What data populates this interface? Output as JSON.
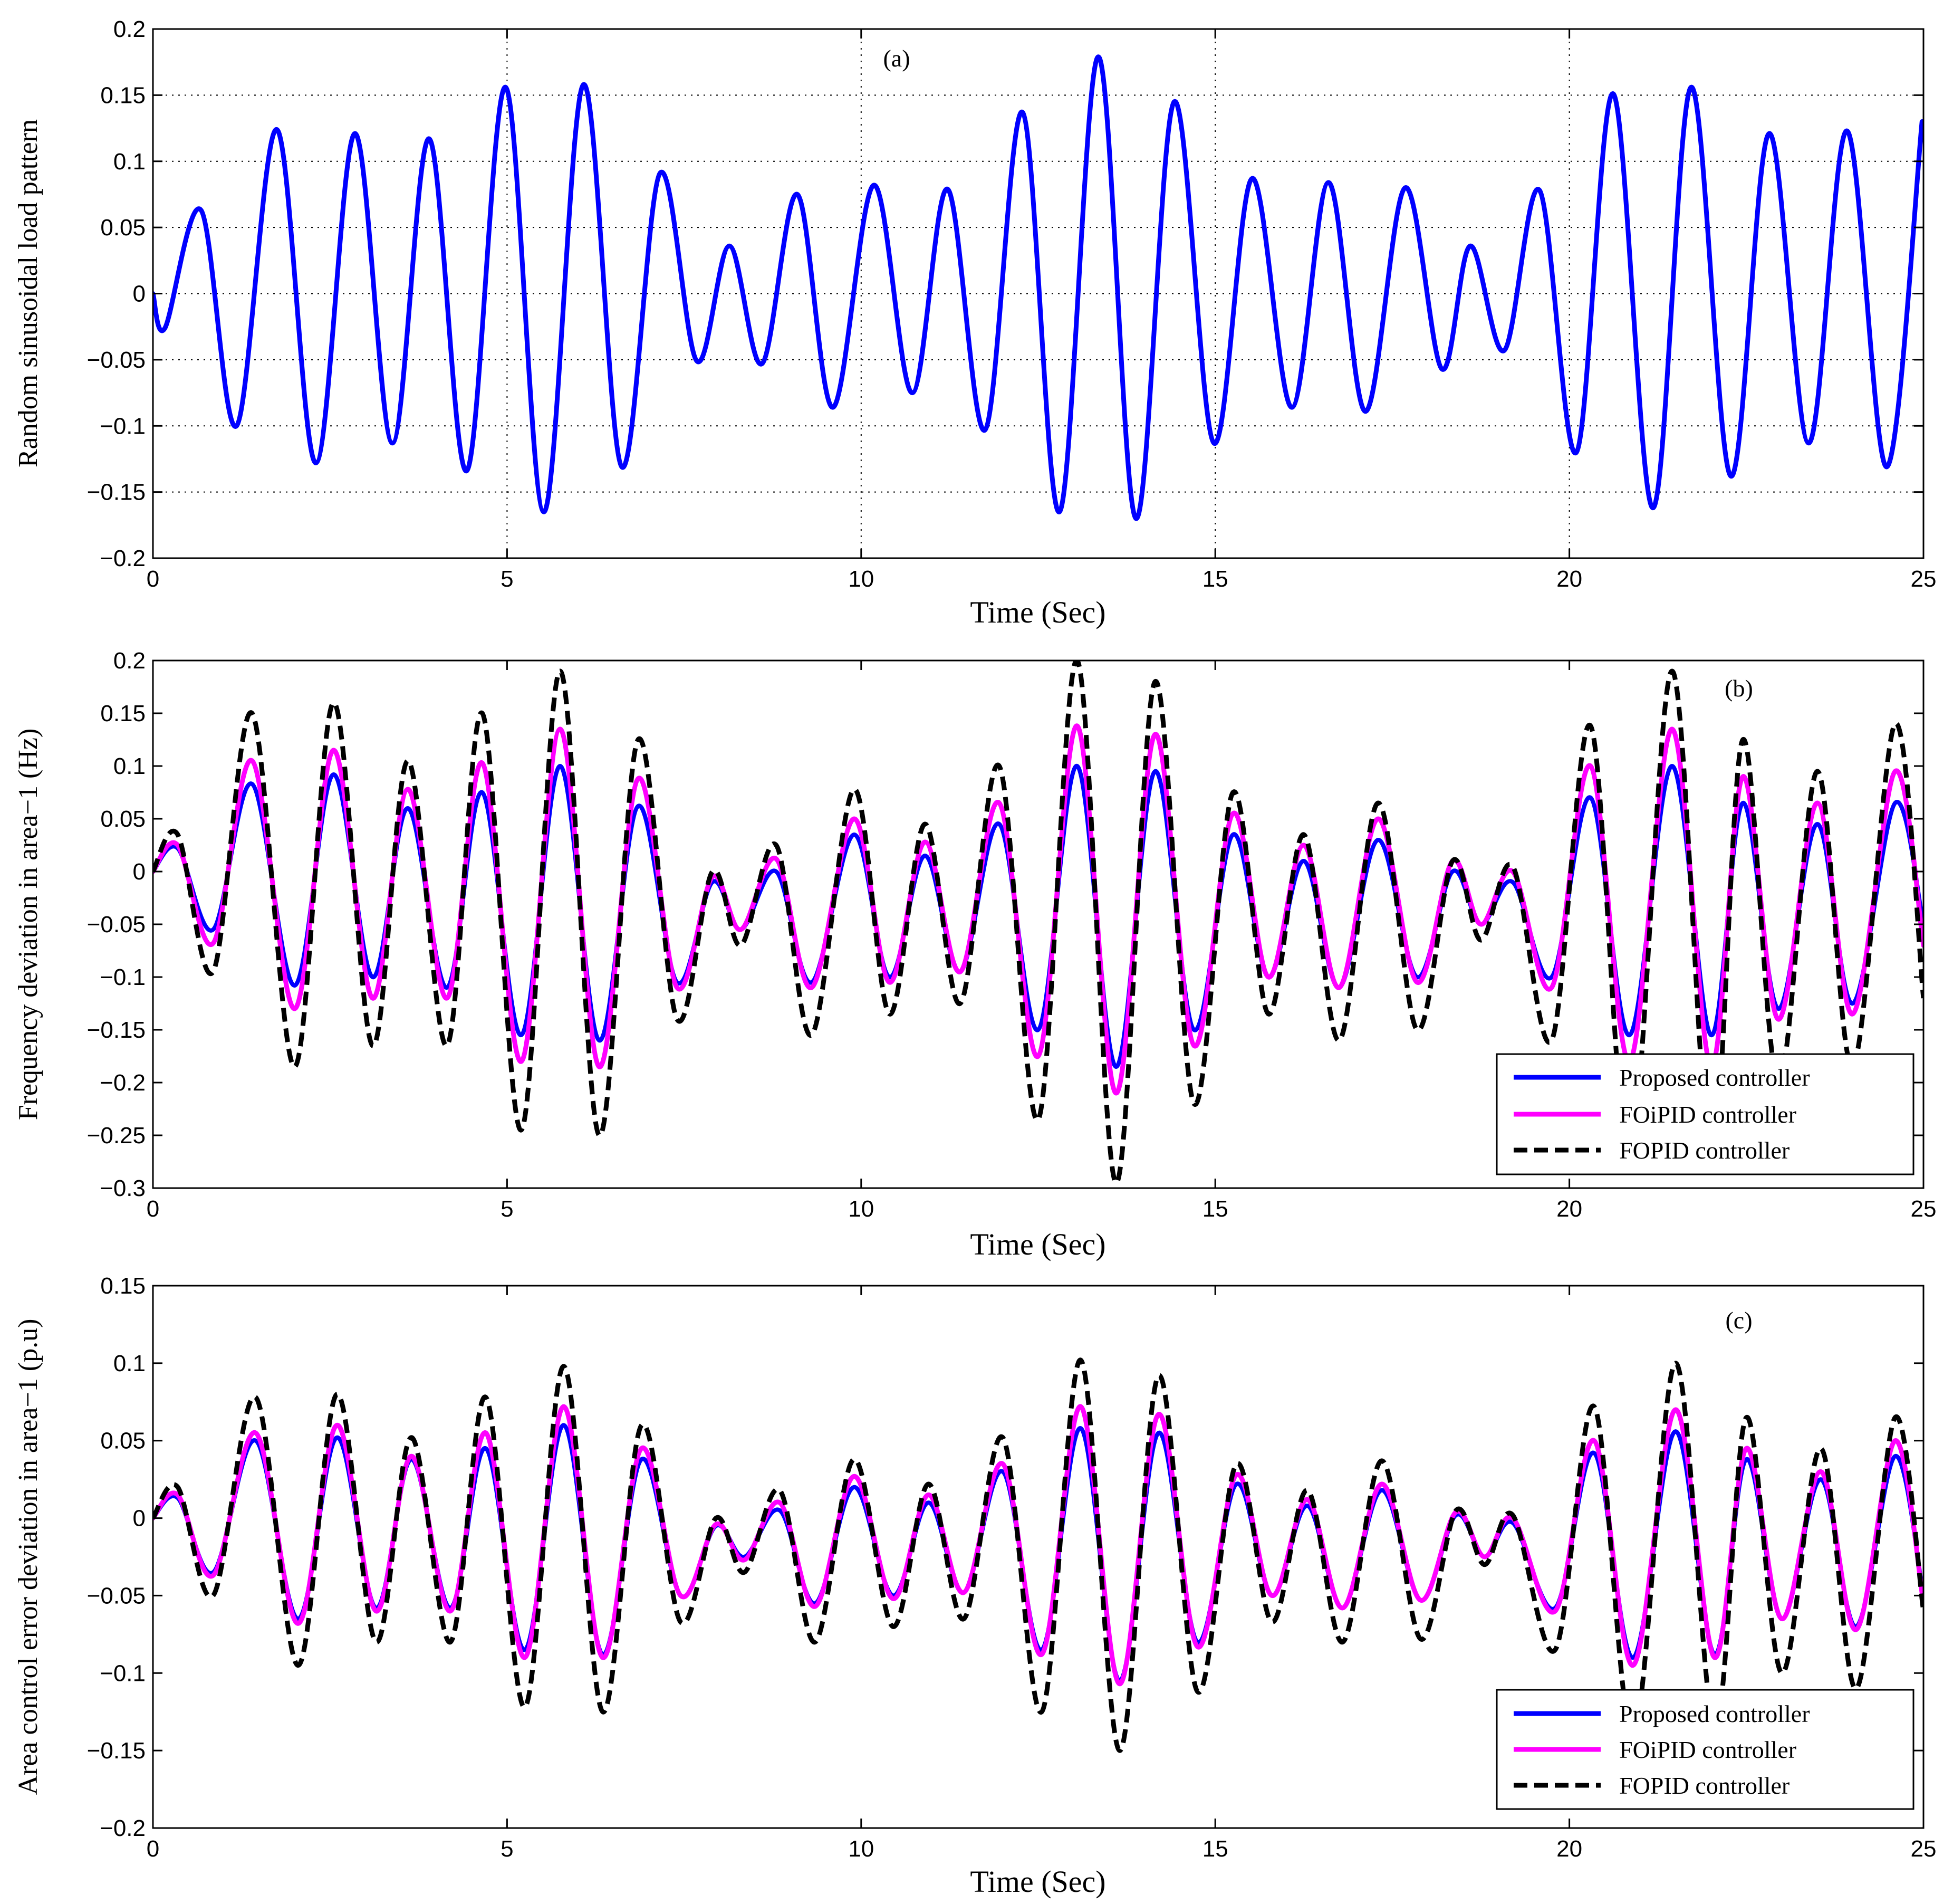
{
  "charts": [
    {
      "id": "a",
      "annotation": "(a)",
      "xlabel": "Time (Sec)",
      "ylabel": "Random sinusoidal load pattern",
      "legend": null
    },
    {
      "id": "b",
      "annotation": "(b)",
      "xlabel": "Time (Sec)",
      "ylabel": "Frequency deviation in area−1 (Hz)",
      "legend": [
        "Proposed controller",
        "FOiPID controller",
        "FOPID controller"
      ]
    },
    {
      "id": "c",
      "annotation": "(c)",
      "xlabel": "Time (Sec)",
      "ylabel": "Area control error deviation in area−1 (p.u)",
      "legend": [
        "Proposed controller",
        "FOiPID controller",
        "FOPID controller"
      ]
    }
  ],
  "colors": {
    "proposed": "#0000ff",
    "foipid": "#ff00ff",
    "fopid": "#000000",
    "grid": "#000000"
  },
  "chart_data": [
    {
      "type": "line",
      "title": "",
      "annotation": "(a)",
      "xlabel": "Time (Sec)",
      "ylabel": "Random sinusoidal load pattern",
      "xlim": [
        0,
        25
      ],
      "ylim": [
        -0.2,
        0.2
      ],
      "xticks": [
        0,
        5,
        10,
        15,
        20,
        25
      ],
      "yticks": [
        -0.2,
        -0.15,
        -0.1,
        -0.05,
        0,
        0.05,
        0.1,
        0.15,
        0.2
      ],
      "grid": "dotted",
      "legend": "none",
      "series": [
        {
          "color": "#0000ff",
          "x": [
            0,
            0.17,
            0.68,
            1.18,
            1.75,
            2.3,
            2.85,
            3.38,
            3.9,
            4.43,
            4.98,
            5.52,
            6.08,
            6.62,
            7.16,
            7.68,
            8.14,
            8.6,
            9.1,
            9.6,
            10.18,
            10.72,
            11.22,
            11.75,
            12.28,
            12.8,
            13.35,
            13.88,
            14.42,
            14.98,
            15.52,
            16.08,
            16.6,
            17.12,
            17.68,
            18.2,
            18.6,
            19.08,
            19.58,
            20.1,
            20.62,
            21.18,
            21.72,
            22.28,
            22.82,
            23.38,
            23.92,
            24.48,
            24.98
          ],
          "y": [
            0,
            -0.026,
            0.063,
            -0.1,
            0.124,
            -0.128,
            0.121,
            -0.113,
            0.117,
            -0.134,
            0.156,
            -0.165,
            0.158,
            -0.131,
            0.091,
            -0.051,
            0.036,
            -0.053,
            0.075,
            -0.086,
            0.082,
            -0.075,
            0.079,
            -0.103,
            0.137,
            -0.165,
            0.179,
            -0.17,
            0.145,
            -0.113,
            0.087,
            -0.086,
            0.084,
            -0.089,
            0.08,
            -0.057,
            0.036,
            -0.043,
            0.078,
            -0.12,
            0.151,
            -0.162,
            0.156,
            -0.138,
            0.121,
            -0.113,
            0.123,
            -0.131,
            0.13
          ]
        }
      ]
    },
    {
      "type": "line",
      "title": "",
      "annotation": "(b)",
      "xlabel": "Time (Sec)",
      "ylabel": "Frequency deviation in area−1 (Hz)",
      "xlim": [
        0,
        25
      ],
      "ylim": [
        -0.3,
        0.2
      ],
      "xticks": [
        0,
        5,
        10,
        15,
        20,
        25
      ],
      "yticks": [
        -0.3,
        -0.25,
        -0.2,
        -0.15,
        -0.1,
        -0.05,
        0,
        0.05,
        0.1,
        0.15,
        0.2
      ],
      "grid": "off",
      "legend": "bottom-right",
      "x": [
        0,
        0.35,
        0.85,
        1.4,
        2.0,
        2.55,
        3.1,
        3.6,
        4.15,
        4.65,
        5.2,
        5.75,
        6.3,
        6.85,
        7.4,
        7.9,
        8.3,
        8.8,
        9.3,
        9.9,
        10.4,
        10.9,
        11.4,
        11.95,
        12.5,
        13.05,
        13.6,
        14.15,
        14.7,
        15.25,
        15.75,
        16.25,
        16.75,
        17.3,
        17.85,
        18.35,
        18.75,
        19.2,
        19.75,
        20.3,
        20.85,
        21.45,
        22.0,
        22.45,
        22.95,
        23.5,
        24.0,
        24.6,
        25.0
      ],
      "series": [
        {
          "name": "Proposed controller",
          "color": "#0000ff",
          "y": [
            0,
            0.022,
            -0.055,
            0.083,
            -0.108,
            0.092,
            -0.1,
            0.06,
            -0.11,
            0.075,
            -0.155,
            0.1,
            -0.16,
            0.062,
            -0.105,
            -0.01,
            -0.055,
            0.0,
            -0.105,
            0.035,
            -0.1,
            0.015,
            -0.095,
            0.045,
            -0.15,
            0.1,
            -0.185,
            0.095,
            -0.15,
            0.035,
            -0.1,
            0.01,
            -0.11,
            0.03,
            -0.1,
            0.0,
            -0.05,
            -0.01,
            -0.1,
            0.07,
            -0.155,
            0.1,
            -0.155,
            0.065,
            -0.13,
            0.045,
            -0.125,
            0.065,
            -0.05
          ]
        },
        {
          "name": "FOiPID controller",
          "color": "#ff00ff",
          "y": [
            0,
            0.025,
            -0.068,
            0.105,
            -0.13,
            0.115,
            -0.12,
            0.078,
            -0.12,
            0.103,
            -0.18,
            0.135,
            -0.185,
            0.088,
            -0.11,
            -0.005,
            -0.055,
            0.012,
            -0.11,
            0.05,
            -0.105,
            0.028,
            -0.095,
            0.065,
            -0.175,
            0.138,
            -0.21,
            0.13,
            -0.165,
            0.055,
            -0.1,
            0.025,
            -0.11,
            0.05,
            -0.105,
            0.01,
            -0.05,
            0.0,
            -0.11,
            0.1,
            -0.18,
            0.135,
            -0.185,
            0.09,
            -0.14,
            0.065,
            -0.135,
            0.095,
            -0.07
          ]
        },
        {
          "name": "FOPID controller",
          "color": "#000000",
          "y": [
            0,
            0.035,
            -0.095,
            0.15,
            -0.185,
            0.16,
            -0.165,
            0.105,
            -0.165,
            0.15,
            -0.245,
            0.19,
            -0.25,
            0.125,
            -0.14,
            0.0,
            -0.07,
            0.025,
            -0.155,
            0.078,
            -0.135,
            0.045,
            -0.125,
            0.1,
            -0.235,
            0.2,
            -0.295,
            0.18,
            -0.22,
            0.075,
            -0.135,
            0.035,
            -0.16,
            0.065,
            -0.15,
            0.01,
            -0.065,
            0.005,
            -0.16,
            0.138,
            -0.27,
            0.19,
            -0.27,
            0.125,
            -0.2,
            0.095,
            -0.185,
            0.14,
            -0.12
          ]
        }
      ]
    },
    {
      "type": "line",
      "title": "",
      "annotation": "(c)",
      "xlabel": "Time (Sec)",
      "ylabel": "Area control error deviation in area−1 (p.u)",
      "xlim": [
        0,
        25
      ],
      "ylim": [
        -0.2,
        0.15
      ],
      "xticks": [
        0,
        5,
        10,
        15,
        20,
        25
      ],
      "yticks": [
        -0.2,
        -0.15,
        -0.1,
        -0.05,
        0,
        0.05,
        0.1,
        0.15
      ],
      "grid": "off",
      "legend": "bottom-right",
      "x": [
        0,
        0.35,
        0.85,
        1.45,
        2.05,
        2.6,
        3.15,
        3.65,
        4.2,
        4.7,
        5.25,
        5.8,
        6.35,
        6.9,
        7.45,
        7.95,
        8.35,
        8.85,
        9.35,
        9.9,
        10.45,
        10.95,
        11.45,
        12.0,
        12.55,
        13.1,
        13.65,
        14.2,
        14.75,
        15.3,
        15.8,
        16.3,
        16.8,
        17.35,
        17.9,
        18.4,
        18.8,
        19.2,
        19.8,
        20.35,
        20.9,
        21.5,
        22.05,
        22.5,
        23.0,
        23.55,
        24.05,
        24.6,
        25.0
      ],
      "series": [
        {
          "name": "Proposed controller",
          "color": "#0000ff",
          "y": [
            0,
            0.013,
            -0.035,
            0.05,
            -0.065,
            0.052,
            -0.058,
            0.038,
            -0.058,
            0.045,
            -0.085,
            0.06,
            -0.088,
            0.038,
            -0.05,
            -0.005,
            -0.025,
            0.005,
            -0.055,
            0.02,
            -0.05,
            0.01,
            -0.048,
            0.03,
            -0.085,
            0.058,
            -0.105,
            0.055,
            -0.08,
            0.022,
            -0.05,
            0.008,
            -0.058,
            0.018,
            -0.053,
            0.002,
            -0.025,
            -0.003,
            -0.058,
            0.042,
            -0.09,
            0.056,
            -0.088,
            0.038,
            -0.065,
            0.025,
            -0.07,
            0.04,
            -0.05
          ]
        },
        {
          "name": "FOiPID controller",
          "color": "#ff00ff",
          "y": [
            0,
            0.015,
            -0.037,
            0.055,
            -0.068,
            0.06,
            -0.06,
            0.04,
            -0.06,
            0.055,
            -0.09,
            0.072,
            -0.09,
            0.045,
            -0.05,
            -0.004,
            -0.027,
            0.01,
            -0.057,
            0.027,
            -0.052,
            0.015,
            -0.048,
            0.035,
            -0.088,
            0.072,
            -0.107,
            0.067,
            -0.083,
            0.028,
            -0.05,
            0.012,
            -0.058,
            0.022,
            -0.053,
            0.004,
            -0.025,
            0.0,
            -0.06,
            0.05,
            -0.095,
            0.07,
            -0.09,
            0.045,
            -0.065,
            0.03,
            -0.072,
            0.05,
            -0.055
          ]
        },
        {
          "name": "FOPID controller",
          "color": "#000000",
          "y": [
            0,
            0.02,
            -0.05,
            0.078,
            -0.095,
            0.08,
            -0.08,
            0.052,
            -0.08,
            0.078,
            -0.122,
            0.098,
            -0.125,
            0.06,
            -0.067,
            0.0,
            -0.035,
            0.018,
            -0.08,
            0.038,
            -0.07,
            0.022,
            -0.065,
            0.052,
            -0.125,
            0.102,
            -0.15,
            0.092,
            -0.112,
            0.035,
            -0.067,
            0.018,
            -0.08,
            0.037,
            -0.078,
            0.005,
            -0.03,
            0.002,
            -0.085,
            0.072,
            -0.14,
            0.1,
            -0.135,
            0.065,
            -0.1,
            0.045,
            -0.11,
            0.065,
            -0.06
          ]
        }
      ]
    }
  ]
}
